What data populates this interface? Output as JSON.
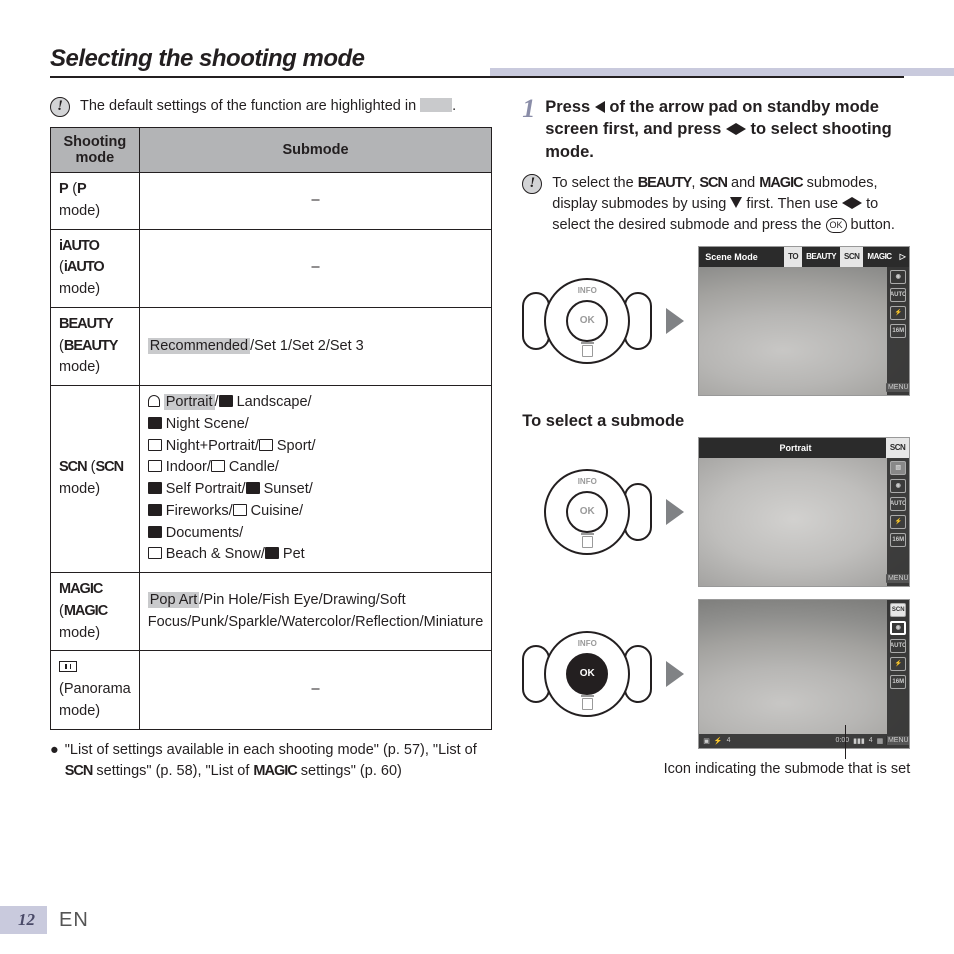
{
  "heading": "Selecting the shooting mode",
  "note_default_a": "The default settings of the function are highlighted in ",
  "note_default_b": ".",
  "table": {
    "head_mode": "Shooting mode",
    "head_sub": "Submode",
    "p_label": "P",
    "p_mode": " mode)",
    "dash": "–",
    "iauto": "iAUTO",
    "beauty": "BEAUTY",
    "beauty_sub_hl": "Recommended",
    "beauty_sub_rest": "/Set 1/Set 2/Set 3",
    "scn": "SCN",
    "scn_sub": {
      "portrait_hl": "Portrait",
      "l1_rest": " Landscape/",
      "l2": " Night Scene/",
      "l3": " Night+Portrait/",
      "l3b": " Sport/",
      "l4": " Indoor/",
      "l4b": " Candle/",
      "l5": " Self Portrait/",
      "l5b": " Sunset/",
      "l6": " Fireworks/",
      "l6b": " Cuisine/",
      "l7": " Documents/",
      "l8": " Beach & Snow/",
      "l8b": " Pet"
    },
    "magic": "MAGIC",
    "magic_sub_hl": "Pop Art",
    "magic_sub_rest": "/Pin Hole/Fish Eye/Drawing/Soft Focus/Punk/Sparkle/Watercolor/Reflection/Miniature",
    "pano": "(Panorama mode)"
  },
  "bullet": {
    "a": "\"List of settings available in each shooting mode\" (p. 57), \"List of ",
    "b": " settings\" (p. 58), \"List of ",
    "c": " settings\" (p. 60)"
  },
  "step": {
    "num": "1",
    "a": "Press ",
    "b": " of the arrow pad on standby mode screen first, and press ",
    "c": " to select shooting mode."
  },
  "note2": {
    "a": "To select the ",
    "b": ", ",
    "c": " and ",
    "d": " submodes, display submodes by using ",
    "e": " first. Then use ",
    "f": " to select the desired submode and press the ",
    "g": " button."
  },
  "subheading": "To select a submode",
  "screens": {
    "scene_mode": "Scene Mode",
    "portrait": "Portrait",
    "tabs_to": "TO",
    "scn_tab": "SCN",
    "menu": "MENU",
    "auto": "AUTO",
    "sixteen": "16M"
  },
  "caption": "Icon indicating the submode that is set",
  "footer": {
    "page": "12",
    "lang": "EN"
  },
  "pad": {
    "info": "INFO",
    "ok": "OK"
  }
}
